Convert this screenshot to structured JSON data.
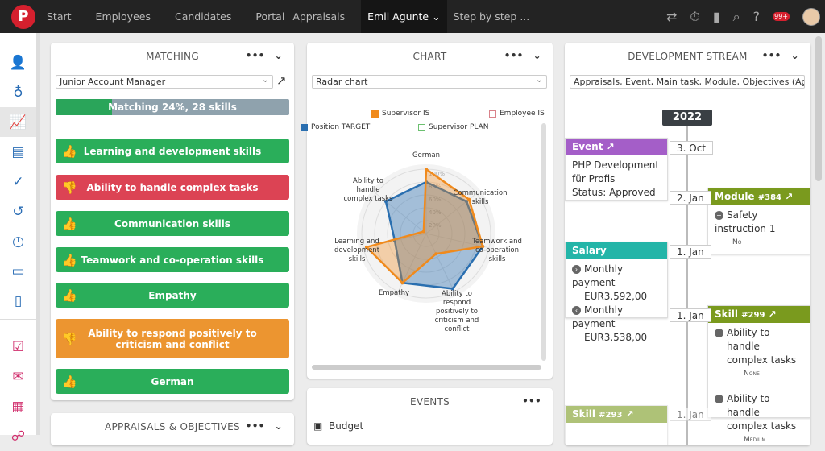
{
  "topbar": {
    "logo": "P",
    "nav": [
      "Start",
      "Employees",
      "Candidates",
      "Portal",
      "Appraisals"
    ],
    "user": "Emil Agunte",
    "search": "Step by step ...",
    "badge": "99+"
  },
  "sidebar": {
    "icons": [
      "user-icon",
      "money-bag-icon",
      "chart-icon",
      "id-card-icon",
      "user-check-icon",
      "history-icon",
      "stopwatch-icon",
      "briefcase-icon",
      "pdf-icon",
      "checkbox-icon",
      "mail-icon",
      "calendar-icon",
      "org-chart-icon"
    ]
  },
  "matching": {
    "title": "MATCHING",
    "position": "Junior Account Manager",
    "matching_label": "Matching 24%, 28 skills",
    "matching_percent": 24,
    "skills": [
      {
        "label": "Learning and development skills",
        "status": "up",
        "color": "#2aae5a"
      },
      {
        "label": "Ability to handle complex tasks",
        "status": "down",
        "color": "#dc4354"
      },
      {
        "label": "Communication skills",
        "status": "up",
        "color": "#2aae5a"
      },
      {
        "label": "Teamwork and co-operation skills",
        "status": "up",
        "color": "#2aae5a"
      },
      {
        "label": "Empathy",
        "status": "up",
        "color": "#2aae5a"
      },
      {
        "label": "Ability to respond positively to criticism and conflict",
        "status": "down",
        "color": "#ec9530"
      },
      {
        "label": "German",
        "status": "up",
        "color": "#2aae5a"
      }
    ]
  },
  "appraisals": {
    "title": "APPRAISALS & OBJECTIVES"
  },
  "chart": {
    "title": "CHART",
    "type_select": "Radar chart"
  },
  "chart_data": {
    "type": "radar",
    "axes": [
      "German",
      "Communication skills",
      "Teamwork and co-operation skills",
      "Ability to respond positively to criticism and conflict",
      "Empathy",
      "Learning and development skills",
      "Ability to handle complex tasks"
    ],
    "ticks": [
      "20%",
      "40%",
      "60%",
      "80%",
      "100%"
    ],
    "range": [
      0,
      100
    ],
    "legend": "top",
    "series": [
      {
        "name": "Supervisor IS",
        "color": "#f08a1c",
        "values": [
          100,
          85,
          90,
          35,
          85,
          95,
          5
        ]
      },
      {
        "name": "Employee IS",
        "color": "#d9828a",
        "values": []
      },
      {
        "name": "Position TARGET",
        "color": "#2a6fb0",
        "values": [
          80,
          80,
          90,
          95,
          85,
          50,
          80
        ]
      },
      {
        "name": "Supervisor PLAN",
        "color": "#6cc070",
        "values": []
      }
    ]
  },
  "events": {
    "title": "EVENTS",
    "first": "Budget"
  },
  "stream": {
    "title": "DEVELOPMENT STREAM",
    "filter": "Appraisals, Event, Main task, Module, Objectives (Agree",
    "year": "2022",
    "dates": [
      "3. Oct",
      "2. Jan",
      "1. Jan",
      "1. Jan",
      "1. Jan"
    ],
    "event": {
      "head": "Event",
      "lines": [
        "PHP Development",
        "für Profis",
        "Status: Approved"
      ]
    },
    "module": {
      "head": "Module",
      "num": "#384",
      "item": "Safety instruction 1",
      "sub": "No"
    },
    "salary": {
      "head": "Salary",
      "items": [
        {
          "l": "Monthly payment",
          "v": "EUR3.592,00"
        },
        {
          "l": "Monthly payment",
          "v": "EUR3.538,00"
        }
      ]
    },
    "skill1": {
      "head": "Skill",
      "num": "#299",
      "items": [
        {
          "l": "Ability to handle complex tasks",
          "v": "None"
        },
        {
          "l": "Ability to handle complex tasks",
          "v": "Medium"
        }
      ]
    },
    "skill2": {
      "head": "Skill",
      "num": "#293"
    }
  }
}
